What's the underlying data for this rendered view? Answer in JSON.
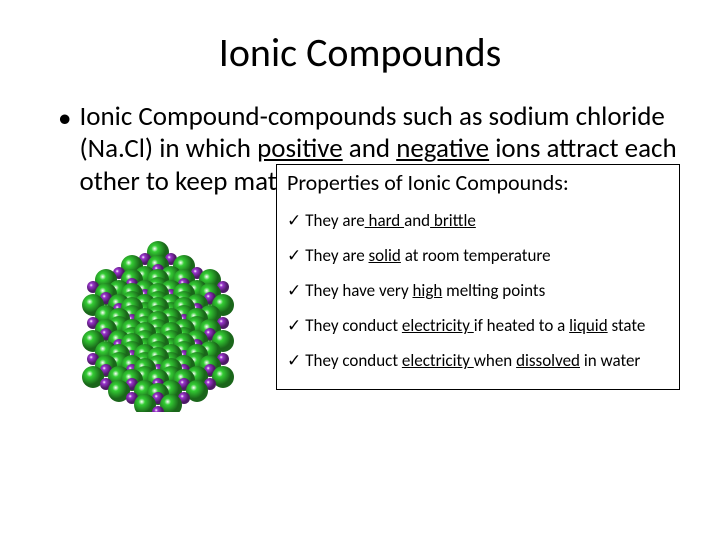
{
  "title": "Ionic Compounds",
  "body": {
    "prefix": "Ionic Compound-compounds such as sodium chloride (Na.Cl) in which ",
    "u1": "positive",
    "mid1": " and ",
    "u2": "negative",
    "suffix": " ions attract each other to keep matter together."
  },
  "props": {
    "heading": "Properties of Ionic Compounds:",
    "items": [
      {
        "pre": "They are",
        "u1": " hard ",
        "mid": "and",
        "u2": " brittle",
        "post": ""
      },
      {
        "pre": "They are ",
        "u1": "solid",
        "mid": " at room temperature",
        "u2": "",
        "post": ""
      },
      {
        "pre": "They have very ",
        "u1": "high",
        "mid": " melting points",
        "u2": "",
        "post": ""
      },
      {
        "pre": "They conduct ",
        "u1": "electricity ",
        "mid": "if heated to a ",
        "u2": "liquid",
        "post": " state"
      },
      {
        "pre": "They conduct ",
        "u1": "electricity ",
        "mid": "when ",
        "u2": "dissolved",
        "post": " in water"
      }
    ]
  },
  "lattice": {
    "colors": {
      "large": "#33cc33",
      "small": "#9933cc",
      "highlight": "#eaffea",
      "shadow": "#1a661a",
      "smallshadow": "#4d1a66"
    },
    "grid": 6
  },
  "fonts": {
    "title_size": 40,
    "body_size": 27,
    "props_title_size": 22,
    "props_item_size": 17
  }
}
